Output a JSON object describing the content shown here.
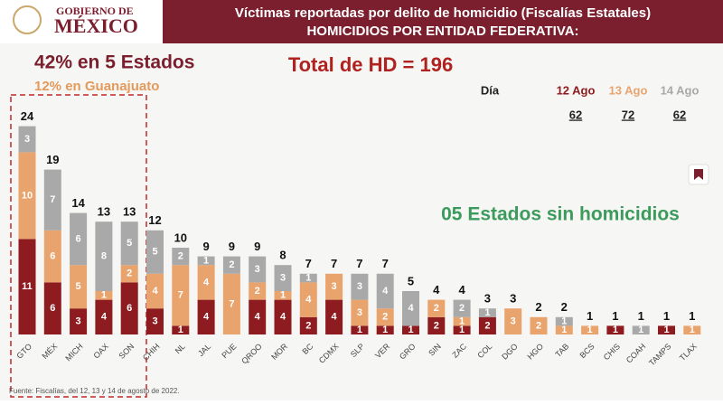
{
  "header": {
    "logo_line1": "GOBIERNO DE",
    "logo_line2": "MÉXICO",
    "title_line1": "Víctimas reportadas por delito de homicidio (Fiscalías Estatales)",
    "title_line2": "HOMICIDIOS POR ENTIDAD FEDERATIVA:"
  },
  "chart_data": {
    "type": "stacked_bar",
    "highlight": "42% en 5 Estados",
    "highlight_sub": "12% en Guanajuato",
    "total_text": "Total de HD = 196",
    "annotation": "05 Estados sin homicidios",
    "legend_title": "Día",
    "legend_totals": [
      62,
      72,
      62
    ],
    "categories": [
      "GTO",
      "MÉX",
      "MICH",
      "OAX",
      "SON",
      "CHIH",
      "NL",
      "JAL",
      "PUE",
      "QROO",
      "MOR",
      "BC",
      "CDMX",
      "SLP",
      "VER",
      "GRO",
      "SIN",
      "ZAC",
      "COL",
      "DGO",
      "HGO",
      "TAB",
      "BCS",
      "CHIS",
      "COAH",
      "TAMPS",
      "TLAX"
    ],
    "series": [
      {
        "name": "12 Ago",
        "color": "#8e1b1f",
        "values": [
          11,
          6,
          3,
          4,
          6,
          3,
          1,
          4,
          0,
          4,
          4,
          2,
          4,
          1,
          1,
          1,
          2,
          1,
          2,
          0,
          0,
          0,
          0,
          1,
          0,
          1,
          0
        ]
      },
      {
        "name": "13 Ago",
        "color": "#e9a46e",
        "values": [
          10,
          6,
          5,
          1,
          2,
          4,
          7,
          4,
          7,
          2,
          1,
          4,
          3,
          3,
          2,
          0,
          2,
          1,
          0,
          3,
          2,
          1,
          1,
          0,
          0,
          0,
          1
        ]
      },
      {
        "name": "14 Ago",
        "color": "#a9a9a9",
        "values": [
          3,
          7,
          6,
          8,
          5,
          5,
          2,
          1,
          2,
          3,
          3,
          1,
          0,
          3,
          4,
          4,
          0,
          2,
          1,
          0,
          0,
          1,
          0,
          0,
          1,
          0,
          0
        ]
      }
    ],
    "totals": [
      24,
      19,
      14,
      13,
      13,
      12,
      10,
      9,
      9,
      9,
      8,
      7,
      7,
      7,
      7,
      5,
      4,
      4,
      3,
      3,
      2,
      2,
      1,
      1,
      1,
      1,
      1
    ],
    "ylim": [
      0,
      26
    ],
    "footnote": "Fuente: Fiscalías, del 12, 13 y 14 de agosto de 2022."
  }
}
